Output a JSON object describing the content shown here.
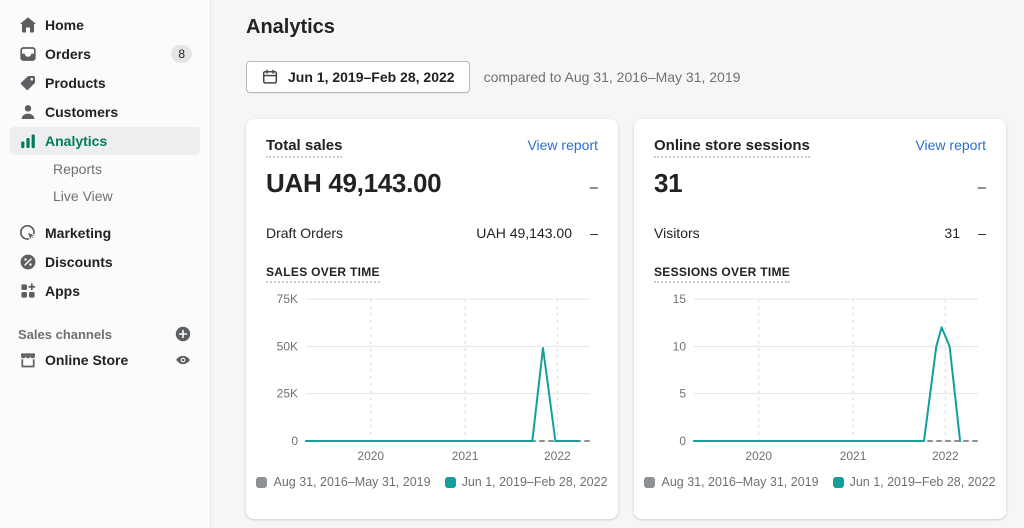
{
  "sidebar": {
    "items": [
      {
        "label": "Home",
        "icon": "home-icon"
      },
      {
        "label": "Orders",
        "icon": "orders-icon",
        "badge": "8"
      },
      {
        "label": "Products",
        "icon": "products-icon"
      },
      {
        "label": "Customers",
        "icon": "customers-icon"
      },
      {
        "label": "Analytics",
        "icon": "analytics-icon",
        "active": true
      },
      {
        "label": "Reports",
        "sub": true
      },
      {
        "label": "Live View",
        "sub": true
      },
      {
        "label": "Marketing",
        "icon": "marketing-icon"
      },
      {
        "label": "Discounts",
        "icon": "discounts-icon"
      },
      {
        "label": "Apps",
        "icon": "apps-icon"
      }
    ],
    "sales_channels": {
      "header": "Sales channels",
      "add_icon": "plus-circle-icon",
      "items": [
        {
          "label": "Online Store",
          "icon": "store-icon",
          "trailing_icon": "eye-icon"
        }
      ]
    }
  },
  "header": {
    "title": "Analytics",
    "date_range": "Jun 1, 2019–Feb 28, 2022",
    "date_icon": "calendar-icon",
    "compare_text": "compared to Aug 31, 2016–May 31, 2019"
  },
  "cards": [
    {
      "title": "Total sales",
      "link": "View report",
      "value": "UAH 49,143.00",
      "delta": "–",
      "rows": [
        {
          "label": "Draft Orders",
          "value": "UAH 49,143.00",
          "delta": "–"
        }
      ],
      "section_label": "SALES OVER TIME"
    },
    {
      "title": "Online store sessions",
      "link": "View report",
      "value": "31",
      "delta": "–",
      "rows": [
        {
          "label": "Visitors",
          "value": "31",
          "delta": "–"
        }
      ],
      "section_label": "SESSIONS OVER TIME"
    }
  ],
  "chart_data": [
    {
      "type": "line",
      "title": "Sales over time",
      "xlabel": "",
      "ylabel": "",
      "ylim": [
        0,
        75000
      ],
      "grid": true,
      "legend_position": "bottom",
      "y_ticks": [
        {
          "label": "75K",
          "value": 75000
        },
        {
          "label": "50K",
          "value": 50000
        },
        {
          "label": "25K",
          "value": 25000
        },
        {
          "label": "0",
          "value": 0
        }
      ],
      "x_ticks": [
        {
          "label": "2020",
          "pos": 0.228
        },
        {
          "label": "2021",
          "pos": 0.56
        },
        {
          "label": "2022",
          "pos": 0.885
        }
      ],
      "series": [
        {
          "name": "Aug 31, 2016–May 31, 2019",
          "color": "#8c9196",
          "dash": true,
          "points": [
            [
              0,
              0
            ],
            [
              1,
              0
            ]
          ]
        },
        {
          "name": "Jun 1, 2019–Feb 28, 2022",
          "color": "#169e9c",
          "dash": false,
          "points": [
            [
              0,
              0
            ],
            [
              0.797,
              0
            ],
            [
              0.8345,
              49143
            ],
            [
              0.878,
              0
            ],
            [
              0.96,
              0
            ]
          ]
        }
      ]
    },
    {
      "type": "line",
      "title": "Sessions over time",
      "xlabel": "",
      "ylabel": "",
      "ylim": [
        0,
        15
      ],
      "grid": true,
      "legend_position": "bottom",
      "y_ticks": [
        {
          "label": "15",
          "value": 15
        },
        {
          "label": "10",
          "value": 10
        },
        {
          "label": "5",
          "value": 5
        },
        {
          "label": "0",
          "value": 0
        }
      ],
      "x_ticks": [
        {
          "label": "2020",
          "pos": 0.228
        },
        {
          "label": "2021",
          "pos": 0.56
        },
        {
          "label": "2022",
          "pos": 0.885
        }
      ],
      "series": [
        {
          "name": "Aug 31, 2016–May 31, 2019",
          "color": "#8c9196",
          "dash": true,
          "points": [
            [
              0,
              0
            ],
            [
              1,
              0
            ]
          ]
        },
        {
          "name": "Jun 1, 2019–Feb 28, 2022",
          "color": "#169e9c",
          "dash": false,
          "points": [
            [
              0,
              0
            ],
            [
              0.81,
              0
            ],
            [
              0.853,
              10
            ],
            [
              0.872,
              12
            ],
            [
              0.9,
              10
            ],
            [
              0.937,
              0
            ]
          ]
        }
      ]
    }
  ],
  "colors": {
    "current_period": "#169e9c",
    "previous_period": "#8c9196",
    "link_blue": "#2c6ecb",
    "nav_active_green": "#007b5c",
    "page_background": "#f6f6f7"
  }
}
